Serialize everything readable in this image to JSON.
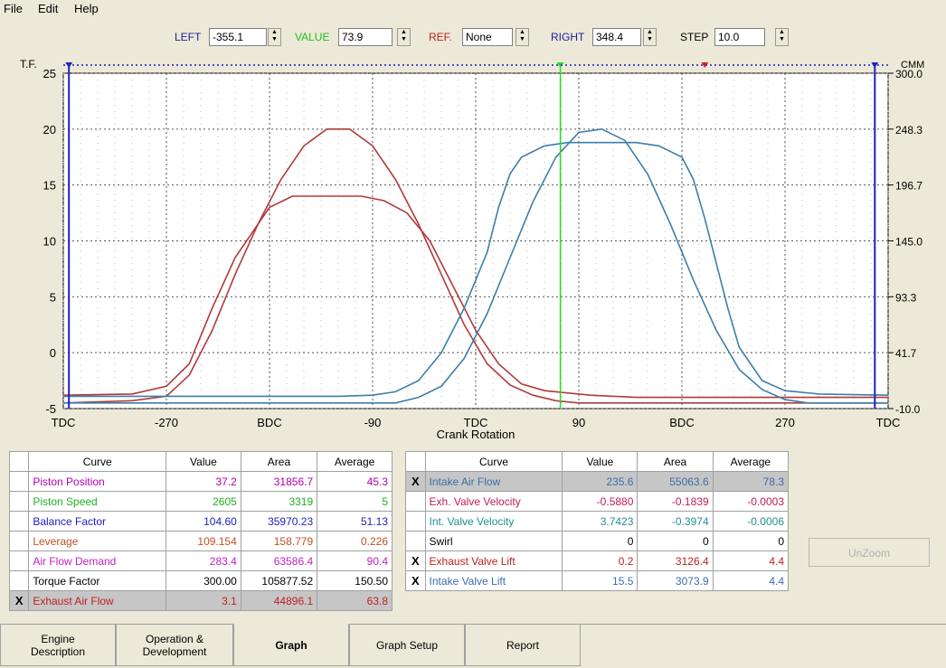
{
  "menu": {
    "file": "File",
    "edit": "Edit",
    "help": "Help"
  },
  "toolbar": {
    "left_label": "LEFT",
    "left_value": "-355.1",
    "value_label": "VALUE",
    "value_value": "73.9",
    "ref_label": "REF.",
    "ref_value": "None",
    "right_label": "RIGHT",
    "right_value": "348.4",
    "step_label": "STEP",
    "step_value": "10.0"
  },
  "chart_data": {
    "type": "line",
    "xlabel": "Crank Rotation",
    "x_tick_labels": [
      "TDC",
      "-270",
      "BDC",
      "-90",
      "TDC",
      "90",
      "BDC",
      "270",
      "TDC"
    ],
    "x_ticks": [
      -360,
      -270,
      -180,
      -90,
      0,
      90,
      180,
      270,
      360
    ],
    "xlim": [
      -360,
      360
    ],
    "ylabel_left": "T.F.",
    "ylim_left": [
      -5,
      25
    ],
    "y_ticks_left": [
      -5,
      0,
      5,
      10,
      15,
      20,
      25
    ],
    "ylabel_right": "CMM",
    "y_tick_labels_right": [
      "-10.0",
      "41.7",
      "93.3",
      "145.0",
      "196.7",
      "248.3",
      "300.0"
    ],
    "grid": true,
    "cursors": {
      "left": -355.1,
      "value": 73.9,
      "ref_marker": 200,
      "right": 348.4
    },
    "colors": {
      "exhaust": "#b03a3a",
      "intake": "#3c7eab",
      "left_right_cursor": "#2020c0",
      "value_cursor": "#22dd22"
    },
    "series": [
      {
        "name": "Exhaust Air Flow",
        "color": "#b03a3a",
        "x": [
          -360,
          -300,
          -270,
          -250,
          -230,
          -210,
          -190,
          -180,
          -160,
          -140,
          -120,
          -100,
          -80,
          -60,
          -40,
          -20,
          0,
          20,
          40,
          60,
          80,
          100,
          140,
          200,
          260,
          300,
          360
        ],
        "y": [
          -3.8,
          -3.7,
          -3,
          -1,
          4,
          8.5,
          11.5,
          13,
          14,
          14,
          14,
          14,
          13.6,
          12.5,
          10,
          6,
          2,
          -1,
          -2.8,
          -3.4,
          -3.6,
          -3.8,
          -4,
          -4,
          -4,
          -4,
          -4
        ]
      },
      {
        "name": "Exhaust Valve Lift",
        "color": "#b03a3a",
        "x": [
          -360,
          -300,
          -270,
          -250,
          -230,
          -210,
          -190,
          -170,
          -150,
          -130,
          -110,
          -90,
          -70,
          -50,
          -30,
          -10,
          10,
          30,
          50,
          70,
          90,
          140,
          200,
          260,
          300,
          360
        ],
        "y": [
          -4.5,
          -4.3,
          -3.9,
          -2,
          2,
          7,
          11.5,
          15.5,
          18.5,
          20,
          20,
          18.5,
          15.5,
          11.5,
          7,
          2.5,
          -1,
          -2.9,
          -3.8,
          -4.3,
          -4.5,
          -4.5,
          -4.5,
          -4.5,
          -4.5,
          -4.5
        ]
      },
      {
        "name": "Intake Air Flow",
        "color": "#3c7eab",
        "x": [
          -360,
          -300,
          -200,
          -120,
          -90,
          -70,
          -50,
          -30,
          -10,
          10,
          20,
          30,
          40,
          60,
          80,
          100,
          120,
          140,
          160,
          180,
          190,
          200,
          210,
          220,
          230,
          250,
          270,
          300,
          360
        ],
        "y": [
          -3.9,
          -3.9,
          -3.9,
          -3.9,
          -3.8,
          -3.5,
          -2.5,
          0,
          4,
          9,
          13,
          16,
          17.5,
          18.5,
          18.8,
          18.8,
          18.8,
          18.8,
          18.5,
          17.5,
          15.5,
          12,
          8,
          4,
          0.5,
          -2.5,
          -3.4,
          -3.7,
          -3.8
        ]
      },
      {
        "name": "Intake Valve Lift",
        "color": "#3c7eab",
        "x": [
          -360,
          -300,
          -200,
          -100,
          -70,
          -50,
          -30,
          -10,
          10,
          30,
          50,
          70,
          90,
          110,
          130,
          150,
          170,
          190,
          210,
          230,
          250,
          270,
          290,
          310,
          360
        ],
        "y": [
          -4.5,
          -4.5,
          -4.5,
          -4.5,
          -4.5,
          -4,
          -3,
          -0.5,
          3.5,
          8.5,
          13.5,
          17.5,
          19.7,
          20,
          19,
          16,
          11.5,
          6.5,
          2,
          -1.5,
          -3.3,
          -4.2,
          -4.5,
          -4.5,
          -4.5
        ]
      }
    ]
  },
  "table_left": {
    "headers": [
      "Curve",
      "Value",
      "Area",
      "Average"
    ],
    "rows": [
      {
        "checked": "",
        "curve": "Piston Position",
        "value": "37.2",
        "area": "31856.7",
        "average": "45.3",
        "color": "#b000b0"
      },
      {
        "checked": "",
        "curve": "Piston Speed",
        "value": "2605",
        "area": "3319",
        "average": "5",
        "color": "#20b020"
      },
      {
        "checked": "",
        "curve": "Balance Factor",
        "value": "104.60",
        "area": "35970.23",
        "average": "51.13",
        "color": "#2020c0"
      },
      {
        "checked": "",
        "curve": "Leverage",
        "value": "109.154",
        "area": "158.779",
        "average": "0.226",
        "color": "#c05020"
      },
      {
        "checked": "",
        "curve": "Air Flow Demand",
        "value": "283.4",
        "area": "63586.4",
        "average": "90.4",
        "color": "#c020c0"
      },
      {
        "checked": "",
        "curve": "Torque Factor",
        "value": "300.00",
        "area": "105877.52",
        "average": "150.50",
        "color": "#000000"
      },
      {
        "checked": "X",
        "curve": "Exhaust Air Flow",
        "value": "3.1",
        "area": "44896.1",
        "average": "63.8",
        "color": "#c02020",
        "selected": true
      }
    ]
  },
  "table_right": {
    "headers": [
      "Curve",
      "Value",
      "Area",
      "Average"
    ],
    "rows": [
      {
        "checked": "X",
        "curve": "Intake Air Flow",
        "value": "235.6",
        "area": "55063.6",
        "average": "78.3",
        "color": "#3c6ea8",
        "selected": true
      },
      {
        "checked": "",
        "curve": "Exh. Valve Velocity",
        "value": "-0.5880",
        "area": "-0.1839",
        "average": "-0.0003",
        "color": "#c02050"
      },
      {
        "checked": "",
        "curve": "Int. Valve Velocity",
        "value": "3.7423",
        "area": "-0.3974",
        "average": "-0.0006",
        "color": "#209090"
      },
      {
        "checked": "",
        "curve": "Swirl",
        "value": "0",
        "area": "0",
        "average": "0",
        "color": "#000000"
      },
      {
        "checked": "X",
        "curve": "Exhaust Valve Lift",
        "value": "0.2",
        "area": "3126.4",
        "average": "4.4",
        "color": "#c02020"
      },
      {
        "checked": "X",
        "curve": "Intake Valve Lift",
        "value": "15.5",
        "area": "3073.9",
        "average": "4.4",
        "color": "#3c6ea8"
      }
    ]
  },
  "unzoom_label": "UnZoom",
  "tabs": [
    {
      "label": "Engine\nDescription"
    },
    {
      "label": "Operation &\nDevelopment"
    },
    {
      "label": "Graph"
    },
    {
      "label": "Graph Setup"
    },
    {
      "label": "Report"
    }
  ]
}
